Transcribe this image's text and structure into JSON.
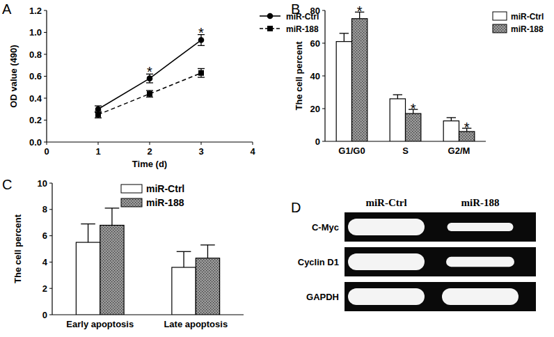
{
  "chart_data": [
    {
      "type": "line",
      "panel": "A",
      "x_label": "Time (d)",
      "y_label": "OD value (490)",
      "x": [
        1,
        2,
        3
      ],
      "xlim": [
        0,
        4
      ],
      "xticks": [
        0,
        1,
        2,
        3,
        4
      ],
      "ylim": [
        0,
        1.2
      ],
      "yticks": [
        {
          "value": 0,
          "label": "0.0"
        },
        0.2,
        0.4,
        0.6,
        0.8,
        {
          "value": 1,
          "label": "1.0"
        },
        1.2
      ],
      "legend": "right",
      "series": [
        {
          "name": "miR-Ctrl",
          "color": "#000000",
          "marker": "circle",
          "line_style": "solid",
          "values": [
            0.3,
            0.58,
            0.93
          ],
          "errors": [
            0.03,
            0.04,
            0.05
          ]
        },
        {
          "name": "miR-188",
          "color": "#000000",
          "marker": "square",
          "line_style": "dashed",
          "values": [
            0.25,
            0.44,
            0.63
          ],
          "errors": [
            0.03,
            0.03,
            0.04
          ]
        }
      ],
      "annotations": [
        {
          "text": "*",
          "index": 1
        },
        {
          "text": "*",
          "index": 2
        }
      ]
    },
    {
      "type": "bar",
      "panel": "B",
      "y_label": "The cell percent",
      "categories": [
        "G1/G0",
        "S",
        "G2/M"
      ],
      "ylim": [
        0,
        80
      ],
      "yticks": [
        0,
        20,
        40,
        60,
        80
      ],
      "legend": "right",
      "series": [
        {
          "name": "miR-Ctrl",
          "color": "#ffffff",
          "values": [
            61,
            26,
            12.5
          ],
          "errors": [
            5,
            2.5,
            2
          ]
        },
        {
          "name": "miR-188",
          "color": "#9a9a9a",
          "values": [
            75,
            17,
            6
          ],
          "errors": [
            4,
            2.5,
            2
          ]
        }
      ],
      "annotations": [
        {
          "text": "*",
          "index": 0
        },
        {
          "text": "*",
          "index": 1
        },
        {
          "text": "*",
          "index": 2
        }
      ]
    },
    {
      "type": "bar",
      "panel": "C",
      "y_label": "The cell percent",
      "categories": [
        "Early apoptosis",
        "Late apoptosis"
      ],
      "ylim": [
        0,
        10
      ],
      "yticks": [
        0,
        2,
        4,
        6,
        8,
        10
      ],
      "legend": "top",
      "series": [
        {
          "name": "miR-Ctrl",
          "color": "#ffffff",
          "values": [
            5.5,
            3.6
          ],
          "errors": [
            1.4,
            1.2
          ]
        },
        {
          "name": "miR-188",
          "color": "#9a9a9a",
          "values": [
            6.8,
            4.3
          ],
          "errors": [
            1.3,
            1.0
          ]
        }
      ]
    }
  ],
  "blot": {
    "panel": "D",
    "columns": [
      "miR-Ctrl",
      "miR-188"
    ],
    "rows": [
      {
        "label": "C-Myc",
        "values": [
          1.0,
          0.5
        ]
      },
      {
        "label": "Cyclin D1",
        "values": [
          1.0,
          0.6
        ]
      },
      {
        "label": "GAPDH",
        "values": [
          1.0,
          1.0
        ]
      }
    ]
  }
}
